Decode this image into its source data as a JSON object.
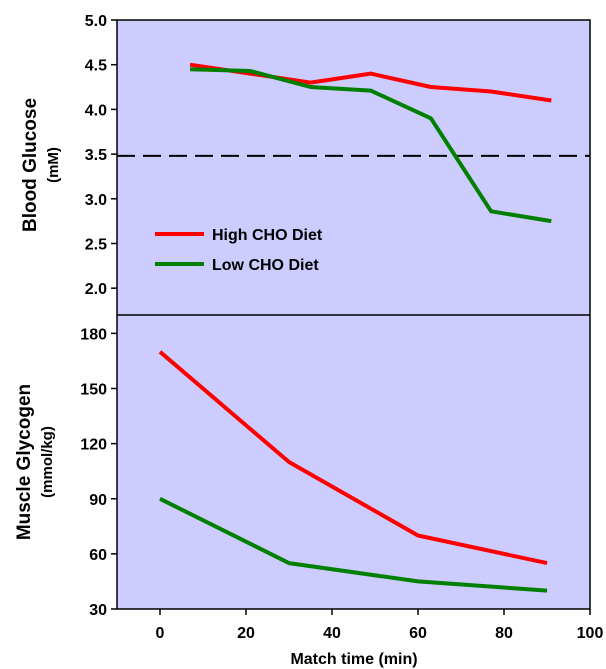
{
  "chart_data": [
    {
      "type": "line",
      "panel": "top",
      "ylabel": "Blood Glucose",
      "yunit": "(mM)",
      "ylim": [
        1.7,
        5.0
      ],
      "yticks": [
        2.0,
        2.5,
        3.0,
        3.5,
        4.0,
        4.5,
        5.0
      ],
      "ytick_labels": [
        "2.0",
        "2.5",
        "3.0",
        "3.5",
        "4.0",
        "4.5",
        "5.0"
      ],
      "reference_line": {
        "y": 3.48,
        "style": "dashed"
      },
      "legend": {
        "placement": "lower-left"
      },
      "series": [
        {
          "name": "High CHO Diet",
          "color": "#ff0000",
          "x": [
            7,
            21,
            35,
            49,
            63,
            77,
            91
          ],
          "y": [
            4.5,
            4.4,
            4.3,
            4.4,
            4.25,
            4.2,
            4.1
          ]
        },
        {
          "name": "Low CHO Diet",
          "color": "#008000",
          "x": [
            7,
            21,
            35,
            49,
            63,
            77,
            91
          ],
          "y": [
            4.45,
            4.43,
            4.25,
            4.21,
            3.9,
            2.86,
            2.75
          ]
        }
      ]
    },
    {
      "type": "line",
      "panel": "bottom",
      "ylabel": "Muscle Glycogen",
      "yunit": "(mmol/kg)",
      "ylim": [
        30,
        190
      ],
      "yticks": [
        30,
        60,
        90,
        120,
        150,
        180
      ],
      "ytick_labels": [
        "30",
        "60",
        "90",
        "120",
        "150",
        "180"
      ],
      "xlabel": "Match time (min)",
      "xlim": [
        -10,
        100
      ],
      "xticks": [
        0,
        20,
        40,
        60,
        80,
        100
      ],
      "xtick_labels": [
        "0",
        "20",
        "40",
        "60",
        "80",
        "100"
      ],
      "series": [
        {
          "name": "High CHO Diet",
          "color": "#ff0000",
          "x": [
            0,
            30,
            60,
            90
          ],
          "y": [
            170,
            110,
            70,
            55
          ]
        },
        {
          "name": "Low CHO Diet",
          "color": "#008000",
          "x": [
            0,
            30,
            60,
            90
          ],
          "y": [
            90,
            55,
            45,
            40
          ]
        }
      ]
    }
  ],
  "colors": {
    "plot_background": "#ccccff",
    "high": "#ff0000",
    "low": "#008000"
  }
}
